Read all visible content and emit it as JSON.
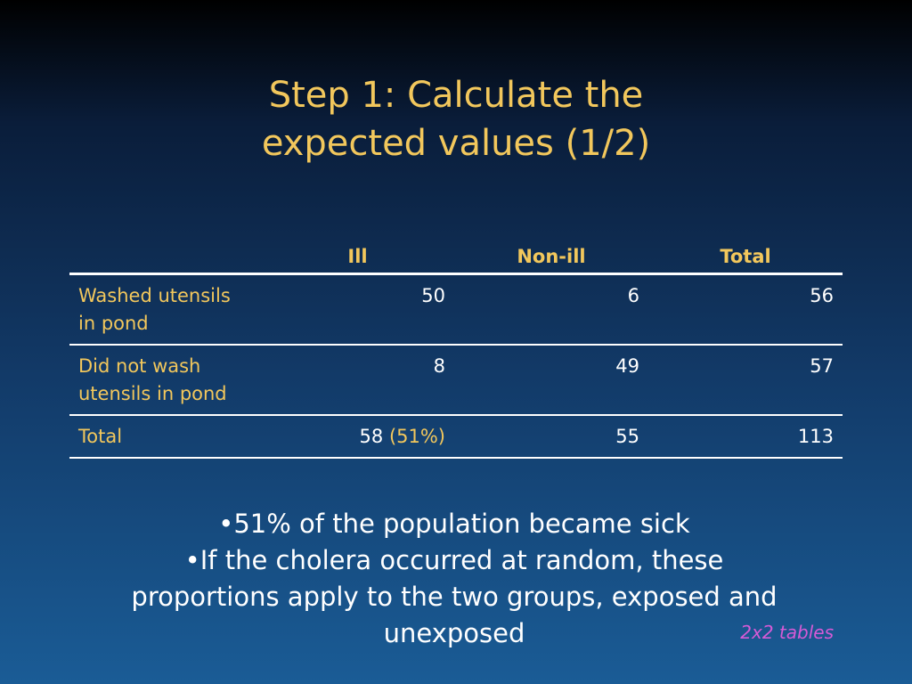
{
  "title": {
    "line1": "Step 1: Calculate the",
    "line2": "expected values (1/2)"
  },
  "table": {
    "headers": [
      "",
      "Ill",
      "Non-ill",
      "Total"
    ],
    "rows": [
      {
        "label": "Washed utensils in pond",
        "ill": "50",
        "nonill": "6",
        "total": "56"
      },
      {
        "label": "Did not wash utensils in pond",
        "ill": "8",
        "nonill": "49",
        "total": "57"
      },
      {
        "label": "Total",
        "ill": "58",
        "ill_pct": "(51%)",
        "nonill": "55",
        "total": "113"
      }
    ]
  },
  "bullets": [
    "•51% of the population became sick",
    "•If the cholera occurred at random, these proportions apply to the two groups, exposed and unexposed"
  ],
  "tag": "2x2 tables",
  "colors": {
    "title": "#f2c75c",
    "text": "#ffffff",
    "tag": "#d65ad6",
    "background_top": "#000000",
    "background_bottom": "#1a5c96"
  }
}
